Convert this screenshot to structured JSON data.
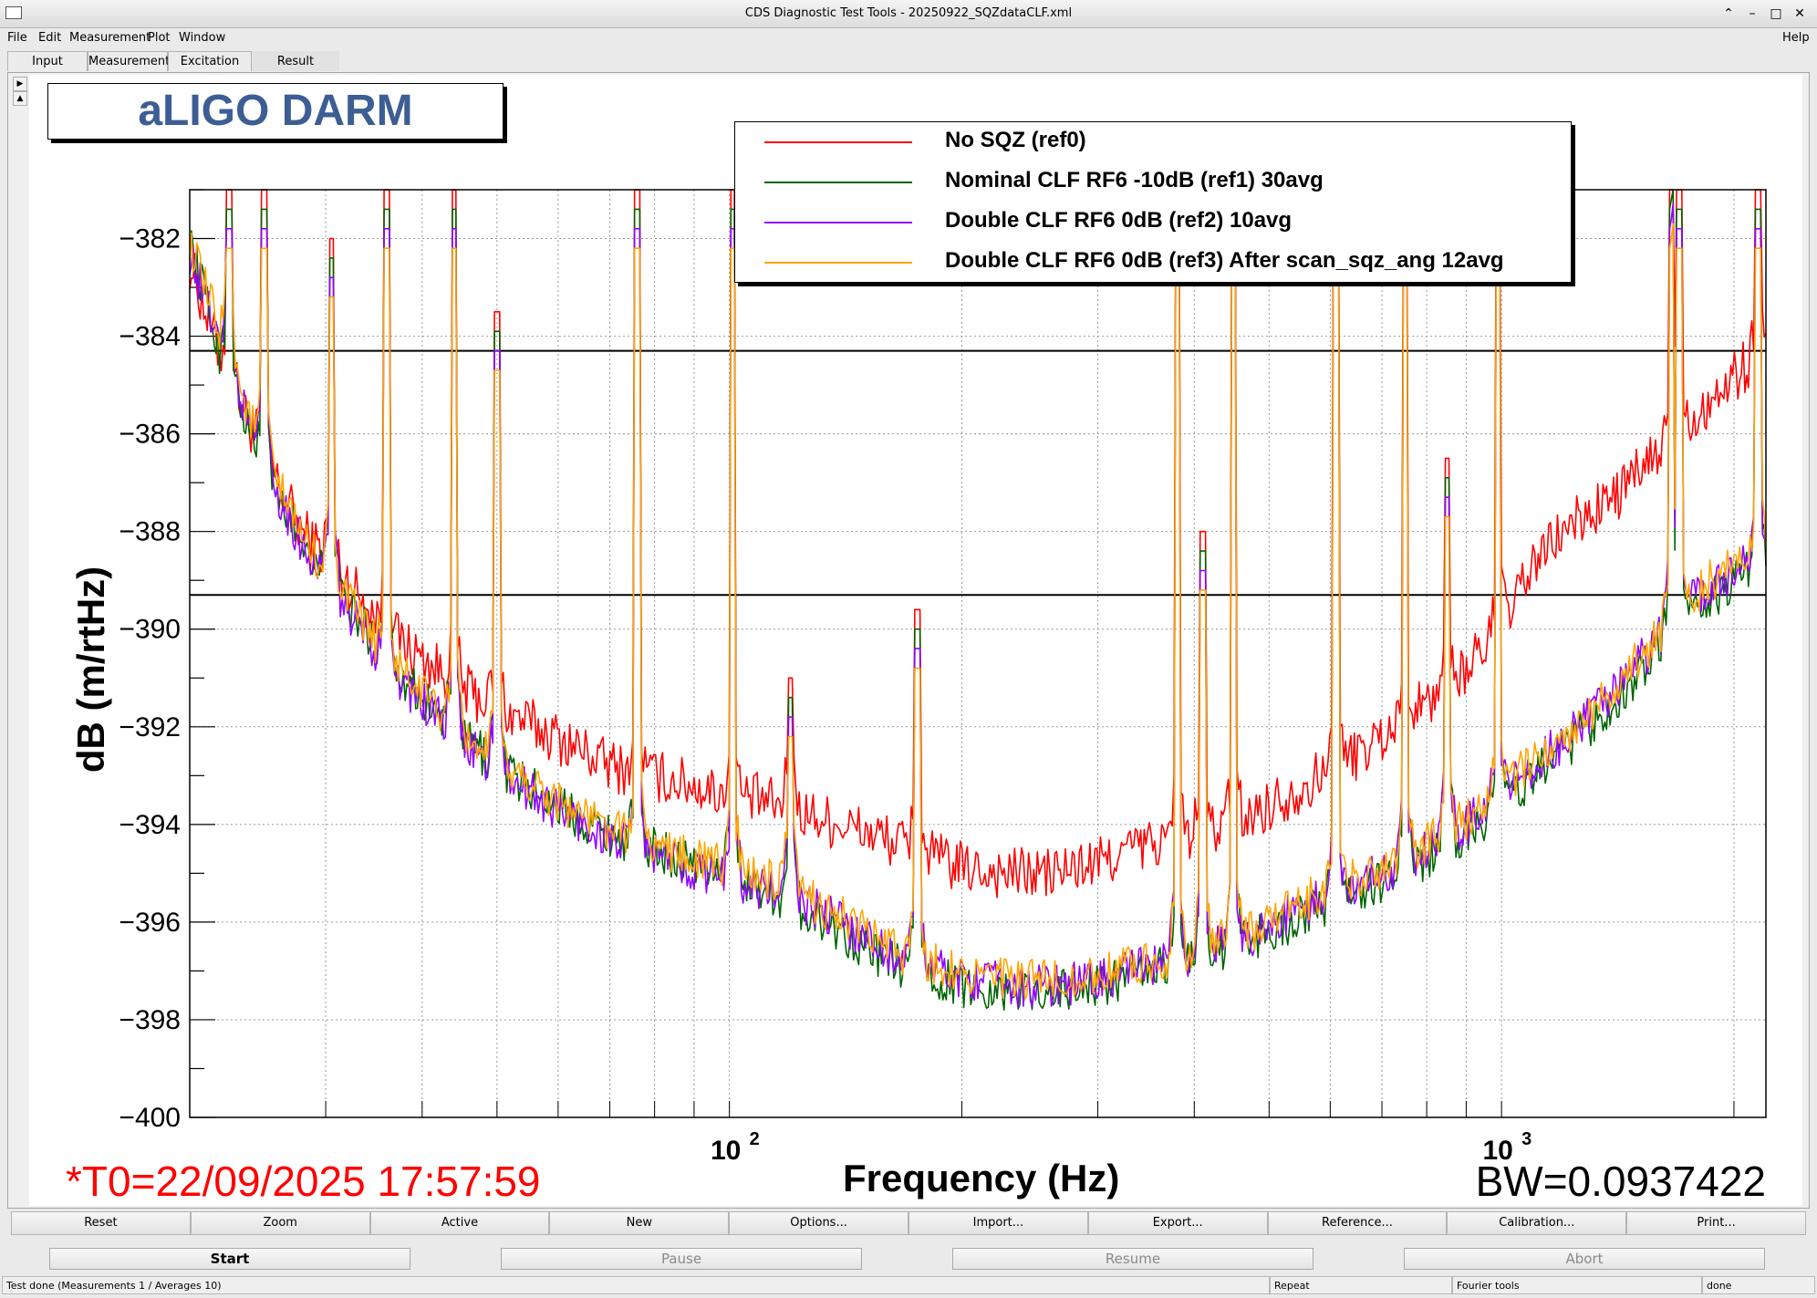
{
  "window": {
    "title": "CDS Diagnostic Test Tools - 20250922_SQZdataCLF.xml"
  },
  "menu": {
    "file": "File",
    "edit": "Edit",
    "measurement": "Measurement",
    "plot": "Plot",
    "window": "Window",
    "help": "Help"
  },
  "tabs": [
    "Input",
    "Measurement",
    "Excitation",
    "Result"
  ],
  "active_tab": "Result",
  "pad_title": "aLIGO DARM",
  "legend": [
    {
      "label": "No SQZ (ref0)",
      "color": "#ff0000"
    },
    {
      "label": "Nominal CLF RF6 -10dB  (ref1) 30avg",
      "color": "#006400"
    },
    {
      "label": "Double CLF RF6 0dB (ref2) 10avg",
      "color": "#9400ff"
    },
    {
      "label": "Double CLF RF6 0dB  (ref3) After scan_sqz_ang 12avg",
      "color": "#ffa500"
    }
  ],
  "annotations": {
    "t0": "*T0=22/09/2025 17:57:59",
    "bw": "BW=0.0937422"
  },
  "chart_data": {
    "type": "line",
    "title": "aLIGO DARM",
    "xlabel": "Frequency (Hz)",
    "ylabel": "dB (m/rtHz)",
    "xscale": "log",
    "xlim": [
      20,
      2200
    ],
    "ylim": [
      -400,
      -381
    ],
    "yticks": [
      "−382",
      "−384",
      "−386",
      "−388",
      "−390",
      "−392",
      "−394",
      "−396",
      "−398",
      "−400"
    ],
    "xticks": [
      {
        "base": "10",
        "exp": "2",
        "value": 100
      },
      {
        "base": "10",
        "exp": "3",
        "value": 1000
      }
    ],
    "grid": true,
    "legend_position": "top-right",
    "hlines": [
      -384.3,
      -389.3
    ],
    "series": [
      {
        "name": "No SQZ (ref0)",
        "color": "#ff0000",
        "x": [
          20,
          22,
          25,
          28,
          32,
          36,
          40,
          45,
          50,
          56,
          63,
          70,
          80,
          90,
          100,
          110,
          120,
          140,
          160,
          180,
          200,
          230,
          260,
          300,
          330,
          400,
          450,
          500,
          600,
          700,
          800,
          900,
          1000,
          1100,
          1200,
          1400,
          1600,
          1700,
          1900,
          2100,
          2150
        ],
        "y": [
          -382.5,
          -384.5,
          -386.5,
          -388.0,
          -389.0,
          -390.0,
          -390.6,
          -391.2,
          -391.6,
          -392.0,
          -392.4,
          -392.8,
          -393.0,
          -393.2,
          -393.4,
          -393.5,
          -393.7,
          -394.0,
          -394.3,
          -394.6,
          -394.9,
          -395.0,
          -395.0,
          -394.8,
          -394.5,
          -394.2,
          -394.0,
          -393.6,
          -392.9,
          -392.2,
          -391.5,
          -390.8,
          -390.0,
          -388.7,
          -388.0,
          -387.3,
          -386.4,
          -385.9,
          -385.2,
          -384.5,
          -384.3
        ]
      },
      {
        "name": "Nominal CLF RF6 -10dB  (ref1) 30avg",
        "color": "#006400",
        "x": [
          20,
          22,
          25,
          28,
          32,
          36,
          40,
          45,
          50,
          56,
          63,
          70,
          80,
          90,
          100,
          110,
          120,
          140,
          160,
          180,
          200,
          230,
          260,
          300,
          330,
          400,
          450,
          500,
          600,
          700,
          800,
          900,
          1000,
          1100,
          1200,
          1400,
          1600,
          1700,
          1900,
          2100,
          2150
        ],
        "y": [
          -382.0,
          -384.5,
          -386.8,
          -388.2,
          -389.5,
          -390.6,
          -391.4,
          -392.2,
          -392.8,
          -393.3,
          -393.8,
          -394.2,
          -394.5,
          -394.8,
          -395.0,
          -395.3,
          -395.6,
          -396.2,
          -396.8,
          -397.1,
          -397.3,
          -397.4,
          -397.4,
          -397.3,
          -397.1,
          -396.8,
          -396.5,
          -396.2,
          -395.6,
          -395.2,
          -394.7,
          -394.2,
          -393.6,
          -393.0,
          -392.5,
          -391.5,
          -390.4,
          -389.8,
          -389.3,
          -388.8,
          -388.7
        ]
      },
      {
        "name": "Double CLF RF6 0dB (ref2) 10avg",
        "color": "#9400ff",
        "x": [
          20,
          22,
          25,
          28,
          32,
          36,
          40,
          45,
          50,
          56,
          63,
          70,
          80,
          90,
          100,
          110,
          120,
          140,
          160,
          180,
          200,
          230,
          260,
          300,
          330,
          400,
          450,
          500,
          600,
          700,
          800,
          900,
          1000,
          1100,
          1200,
          1400,
          1600,
          1700,
          1900,
          2100,
          2150
        ],
        "y": [
          -382.3,
          -384.2,
          -386.6,
          -388.3,
          -389.6,
          -390.8,
          -391.5,
          -392.3,
          -392.9,
          -393.4,
          -393.9,
          -394.3,
          -394.6,
          -394.9,
          -395.1,
          -395.3,
          -395.5,
          -396.0,
          -396.6,
          -396.9,
          -397.1,
          -397.3,
          -397.3,
          -397.2,
          -397.0,
          -396.7,
          -396.4,
          -396.1,
          -395.4,
          -395.0,
          -394.5,
          -394.0,
          -393.4,
          -392.8,
          -392.3,
          -391.3,
          -390.2,
          -389.6,
          -389.0,
          -388.6,
          -388.5
        ]
      },
      {
        "name": "Double CLF RF6 0dB  (ref3) After scan_sqz_ang 12avg",
        "color": "#ffa500",
        "x": [
          20,
          22,
          25,
          28,
          32,
          36,
          40,
          45,
          50,
          56,
          63,
          70,
          80,
          90,
          100,
          110,
          120,
          140,
          160,
          180,
          200,
          230,
          260,
          300,
          330,
          400,
          450,
          500,
          600,
          700,
          800,
          900,
          1000,
          1100,
          1200,
          1400,
          1600,
          1700,
          1900,
          2100,
          2150
        ],
        "y": [
          -382.1,
          -384.0,
          -386.5,
          -388.1,
          -389.4,
          -390.6,
          -391.3,
          -392.1,
          -392.7,
          -393.2,
          -393.7,
          -394.1,
          -394.4,
          -394.7,
          -394.9,
          -395.1,
          -395.3,
          -395.9,
          -396.5,
          -396.8,
          -397.0,
          -397.2,
          -397.2,
          -397.1,
          -396.9,
          -396.6,
          -396.3,
          -396.0,
          -395.3,
          -394.9,
          -394.4,
          -393.9,
          -393.3,
          -392.7,
          -392.2,
          -391.2,
          -390.1,
          -389.5,
          -388.9,
          -388.5,
          -388.4
        ]
      }
    ],
    "spikes": [
      {
        "x": 22.5,
        "peak": -381.0
      },
      {
        "x": 25.0,
        "peak": -381.0
      },
      {
        "x": 30.5,
        "peak": -382.0
      },
      {
        "x": 36.0,
        "peak": -381.0
      },
      {
        "x": 44.0,
        "peak": -381.0
      },
      {
        "x": 50.0,
        "peak": -383.5
      },
      {
        "x": 76.0,
        "peak": -381.0
      },
      {
        "x": 101.0,
        "peak": -381.0
      },
      {
        "x": 120.0,
        "peak": -391.0
      },
      {
        "x": 175.0,
        "peak": -389.6
      },
      {
        "x": 380.0,
        "peak": -381.0
      },
      {
        "x": 410.0,
        "peak": -388.0
      },
      {
        "x": 450.0,
        "peak": -381.0
      },
      {
        "x": 610.0,
        "peak": -381.0
      },
      {
        "x": 750.0,
        "peak": -381.0
      },
      {
        "x": 850.0,
        "peak": -386.5
      },
      {
        "x": 990.0,
        "peak": -381.0
      },
      {
        "x": 1660.0,
        "peak": -381.0
      },
      {
        "x": 1700.0,
        "peak": -381.0
      },
      {
        "x": 2150.0,
        "peak": -381.0
      }
    ]
  },
  "buttons": [
    "Reset",
    "Zoom",
    "Active",
    "New",
    "Options...",
    "Import...",
    "Export...",
    "Reference...",
    "Calibration...",
    "Print..."
  ],
  "controls": {
    "start": "Start",
    "pause": "Pause",
    "resume": "Resume",
    "abort": "Abort"
  },
  "status": {
    "message": "Test done (Measurements 1 / Averages 10)",
    "repeat": "Repeat",
    "tools": "Fourier tools",
    "state": "done"
  }
}
